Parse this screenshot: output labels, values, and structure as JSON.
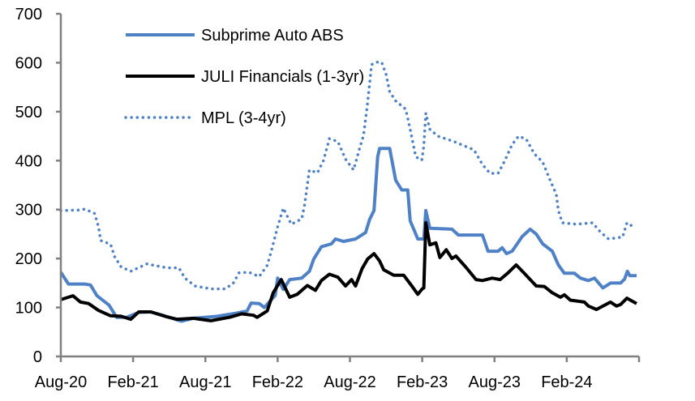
{
  "chart_data": {
    "type": "line",
    "title": "",
    "xlabel": "",
    "ylabel": "",
    "ylim": [
      0,
      700
    ],
    "yticks": [
      "0",
      "100",
      "200",
      "300",
      "400",
      "500",
      "600",
      "700"
    ],
    "xlim": [
      "2020-08-01",
      "2024-08-01"
    ],
    "xticks": [
      {
        "label": "Aug-20",
        "date": "2020-08-01"
      },
      {
        "label": "Feb-21",
        "date": "2021-02-01"
      },
      {
        "label": "Aug-21",
        "date": "2021-08-01"
      },
      {
        "label": "Feb-22",
        "date": "2022-02-01"
      },
      {
        "label": "Aug-22",
        "date": "2022-08-01"
      },
      {
        "label": "Feb-23",
        "date": "2023-02-01"
      },
      {
        "label": "Aug-23",
        "date": "2023-08-01"
      },
      {
        "label": "Feb-24",
        "date": "2024-02-01"
      }
    ],
    "grid": false,
    "legend_position": "top-left",
    "series": [
      {
        "name": "Subprime Auto ABS",
        "color": "#4f81c6",
        "style": "solid",
        "points": [
          [
            "2020-08-01",
            172
          ],
          [
            "2020-08-20",
            148
          ],
          [
            "2020-10-01",
            148
          ],
          [
            "2020-10-15",
            146
          ],
          [
            "2020-11-01",
            124
          ],
          [
            "2020-12-01",
            105
          ],
          [
            "2020-12-20",
            80
          ],
          [
            "2021-01-15",
            80
          ],
          [
            "2021-02-15",
            90
          ],
          [
            "2021-03-15",
            91
          ],
          [
            "2021-04-15",
            84
          ],
          [
            "2021-06-01",
            72
          ],
          [
            "2021-07-01",
            78
          ],
          [
            "2021-09-01",
            82
          ],
          [
            "2021-10-15",
            88
          ],
          [
            "2021-11-15",
            93
          ],
          [
            "2021-11-25",
            109
          ],
          [
            "2021-12-15",
            108
          ],
          [
            "2021-12-28",
            100
          ],
          [
            "2022-01-25",
            125
          ],
          [
            "2022-02-01",
            160
          ],
          [
            "2022-02-15",
            137
          ],
          [
            "2022-03-01",
            157
          ],
          [
            "2022-04-01",
            160
          ],
          [
            "2022-04-20",
            174
          ],
          [
            "2022-05-01",
            199
          ],
          [
            "2022-05-20",
            224
          ],
          [
            "2022-06-15",
            230
          ],
          [
            "2022-06-25",
            240
          ],
          [
            "2022-07-15",
            235
          ],
          [
            "2022-08-15",
            240
          ],
          [
            "2022-09-10",
            253
          ],
          [
            "2022-09-20",
            280
          ],
          [
            "2022-10-01",
            298
          ],
          [
            "2022-10-10",
            408
          ],
          [
            "2022-10-15",
            425
          ],
          [
            "2022-11-10",
            425
          ],
          [
            "2022-11-25",
            360
          ],
          [
            "2022-12-10",
            340
          ],
          [
            "2022-12-25",
            340
          ],
          [
            "2023-01-01",
            277
          ],
          [
            "2023-01-20",
            240
          ],
          [
            "2023-02-05",
            240
          ],
          [
            "2023-02-10",
            298
          ],
          [
            "2023-02-20",
            262
          ],
          [
            "2023-04-15",
            260
          ],
          [
            "2023-05-01",
            248
          ],
          [
            "2023-07-01",
            248
          ],
          [
            "2023-07-15",
            215
          ],
          [
            "2023-08-10",
            215
          ],
          [
            "2023-08-20",
            222
          ],
          [
            "2023-09-01",
            210
          ],
          [
            "2023-09-15",
            215
          ],
          [
            "2023-10-10",
            245
          ],
          [
            "2023-10-30",
            260
          ],
          [
            "2023-11-15",
            250
          ],
          [
            "2023-12-01",
            230
          ],
          [
            "2023-12-25",
            215
          ],
          [
            "2024-01-10",
            187
          ],
          [
            "2024-01-25",
            170
          ],
          [
            "2024-02-20",
            170
          ],
          [
            "2024-03-05",
            160
          ],
          [
            "2024-03-25",
            155
          ],
          [
            "2024-04-10",
            160
          ],
          [
            "2024-05-01",
            140
          ],
          [
            "2024-05-20",
            150
          ],
          [
            "2024-06-15",
            150
          ],
          [
            "2024-06-25",
            158
          ],
          [
            "2024-07-02",
            174
          ],
          [
            "2024-07-08",
            165
          ],
          [
            "2024-07-25",
            165
          ]
        ]
      },
      {
        "name": "JULI Financials (1-3yr)",
        "color": "#000000",
        "style": "solid",
        "points": [
          [
            "2020-08-01",
            116
          ],
          [
            "2020-09-01",
            124
          ],
          [
            "2020-09-20",
            111
          ],
          [
            "2020-10-10",
            108
          ],
          [
            "2020-11-05",
            94
          ],
          [
            "2020-12-05",
            83
          ],
          [
            "2021-01-01",
            82
          ],
          [
            "2021-01-25",
            76
          ],
          [
            "2021-02-15",
            91
          ],
          [
            "2021-03-15",
            91
          ],
          [
            "2021-04-25",
            81
          ],
          [
            "2021-05-20",
            76
          ],
          [
            "2021-07-01",
            78
          ],
          [
            "2021-08-15",
            73
          ],
          [
            "2021-10-01",
            80
          ],
          [
            "2021-11-01",
            87
          ],
          [
            "2021-12-01",
            84
          ],
          [
            "2021-12-10",
            80
          ],
          [
            "2022-01-05",
            93
          ],
          [
            "2022-01-20",
            130
          ],
          [
            "2022-02-10",
            157
          ],
          [
            "2022-03-01",
            121
          ],
          [
            "2022-03-20",
            127
          ],
          [
            "2022-04-15",
            145
          ],
          [
            "2022-05-05",
            135
          ],
          [
            "2022-05-20",
            155
          ],
          [
            "2022-06-10",
            168
          ],
          [
            "2022-07-01",
            162
          ],
          [
            "2022-07-20",
            144
          ],
          [
            "2022-08-05",
            157
          ],
          [
            "2022-08-15",
            144
          ],
          [
            "2022-09-01",
            179
          ],
          [
            "2022-09-15",
            199
          ],
          [
            "2022-10-01",
            210
          ],
          [
            "2022-10-15",
            195
          ],
          [
            "2022-10-25",
            177
          ],
          [
            "2022-11-20",
            166
          ],
          [
            "2022-12-15",
            166
          ],
          [
            "2023-01-05",
            144
          ],
          [
            "2023-01-20",
            127
          ],
          [
            "2023-02-01",
            138
          ],
          [
            "2023-02-05",
            140
          ],
          [
            "2023-02-10",
            273
          ],
          [
            "2023-02-20",
            228
          ],
          [
            "2023-03-05",
            232
          ],
          [
            "2023-03-15",
            202
          ],
          [
            "2023-04-01",
            218
          ],
          [
            "2023-04-15",
            200
          ],
          [
            "2023-04-25",
            205
          ],
          [
            "2023-05-20",
            182
          ],
          [
            "2023-06-15",
            157
          ],
          [
            "2023-07-01",
            155
          ],
          [
            "2023-07-25",
            160
          ],
          [
            "2023-08-15",
            157
          ],
          [
            "2023-09-05",
            171
          ],
          [
            "2023-09-25",
            187
          ],
          [
            "2023-10-15",
            170
          ],
          [
            "2023-10-30",
            157
          ],
          [
            "2023-11-15",
            144
          ],
          [
            "2023-12-05",
            143
          ],
          [
            "2023-12-25",
            130
          ],
          [
            "2024-01-15",
            121
          ],
          [
            "2024-01-25",
            126
          ],
          [
            "2024-02-10",
            115
          ],
          [
            "2024-03-15",
            111
          ],
          [
            "2024-03-25",
            103
          ],
          [
            "2024-04-15",
            96
          ],
          [
            "2024-05-20",
            111
          ],
          [
            "2024-06-05",
            103
          ],
          [
            "2024-06-15",
            106
          ],
          [
            "2024-07-01",
            119
          ],
          [
            "2024-07-25",
            108
          ]
        ]
      },
      {
        "name": "MPL (3-4yr)",
        "color": "#4f81c6",
        "style": "dotted",
        "points": [
          [
            "2020-08-01",
            298
          ],
          [
            "2020-09-15",
            299
          ],
          [
            "2020-10-01",
            301
          ],
          [
            "2020-10-25",
            292
          ],
          [
            "2020-11-05",
            265
          ],
          [
            "2020-11-10",
            237
          ],
          [
            "2020-12-05",
            229
          ],
          [
            "2020-12-15",
            204
          ],
          [
            "2021-01-01",
            183
          ],
          [
            "2021-01-25",
            174
          ],
          [
            "2021-03-05",
            189
          ],
          [
            "2021-04-25",
            181
          ],
          [
            "2021-05-25",
            181
          ],
          [
            "2021-06-10",
            160
          ],
          [
            "2021-07-05",
            144
          ],
          [
            "2021-08-15",
            138
          ],
          [
            "2021-09-20",
            138
          ],
          [
            "2021-10-10",
            149
          ],
          [
            "2021-10-25",
            171
          ],
          [
            "2021-11-20",
            172
          ],
          [
            "2021-12-15",
            163
          ],
          [
            "2022-01-05",
            186
          ],
          [
            "2022-01-15",
            215
          ],
          [
            "2022-02-01",
            265
          ],
          [
            "2022-02-15",
            303
          ],
          [
            "2022-03-05",
            270
          ],
          [
            "2022-04-01",
            281
          ],
          [
            "2022-04-08",
            309
          ],
          [
            "2022-04-20",
            381
          ],
          [
            "2022-05-10",
            375
          ],
          [
            "2022-05-25",
            400
          ],
          [
            "2022-06-10",
            445
          ],
          [
            "2022-07-01",
            439
          ],
          [
            "2022-07-20",
            403
          ],
          [
            "2022-08-10",
            381
          ],
          [
            "2022-08-25",
            425
          ],
          [
            "2022-09-05",
            452
          ],
          [
            "2022-09-15",
            518
          ],
          [
            "2022-09-25",
            596
          ],
          [
            "2022-10-05",
            601
          ],
          [
            "2022-10-20",
            601
          ],
          [
            "2022-11-01",
            576
          ],
          [
            "2022-11-10",
            541
          ],
          [
            "2022-11-25",
            522
          ],
          [
            "2022-12-20",
            505
          ],
          [
            "2023-01-01",
            464
          ],
          [
            "2023-01-15",
            408
          ],
          [
            "2023-01-30",
            401
          ],
          [
            "2023-02-05",
            430
          ],
          [
            "2023-02-10",
            497
          ],
          [
            "2023-02-20",
            464
          ],
          [
            "2023-03-10",
            450
          ],
          [
            "2023-04-20",
            439
          ],
          [
            "2023-06-10",
            422
          ],
          [
            "2023-07-01",
            392
          ],
          [
            "2023-07-20",
            374
          ],
          [
            "2023-08-10",
            374
          ],
          [
            "2023-08-25",
            397
          ],
          [
            "2023-09-15",
            433
          ],
          [
            "2023-10-01",
            450
          ],
          [
            "2023-10-20",
            444
          ],
          [
            "2023-11-10",
            414
          ],
          [
            "2023-12-01",
            397
          ],
          [
            "2023-12-20",
            359
          ],
          [
            "2024-01-05",
            331
          ],
          [
            "2024-01-10",
            298
          ],
          [
            "2024-01-20",
            273
          ],
          [
            "2024-02-25",
            270
          ],
          [
            "2024-04-05",
            273
          ],
          [
            "2024-04-25",
            254
          ],
          [
            "2024-05-15",
            240
          ],
          [
            "2024-06-20",
            244
          ],
          [
            "2024-07-01",
            273
          ],
          [
            "2024-07-20",
            263
          ]
        ]
      }
    ]
  }
}
